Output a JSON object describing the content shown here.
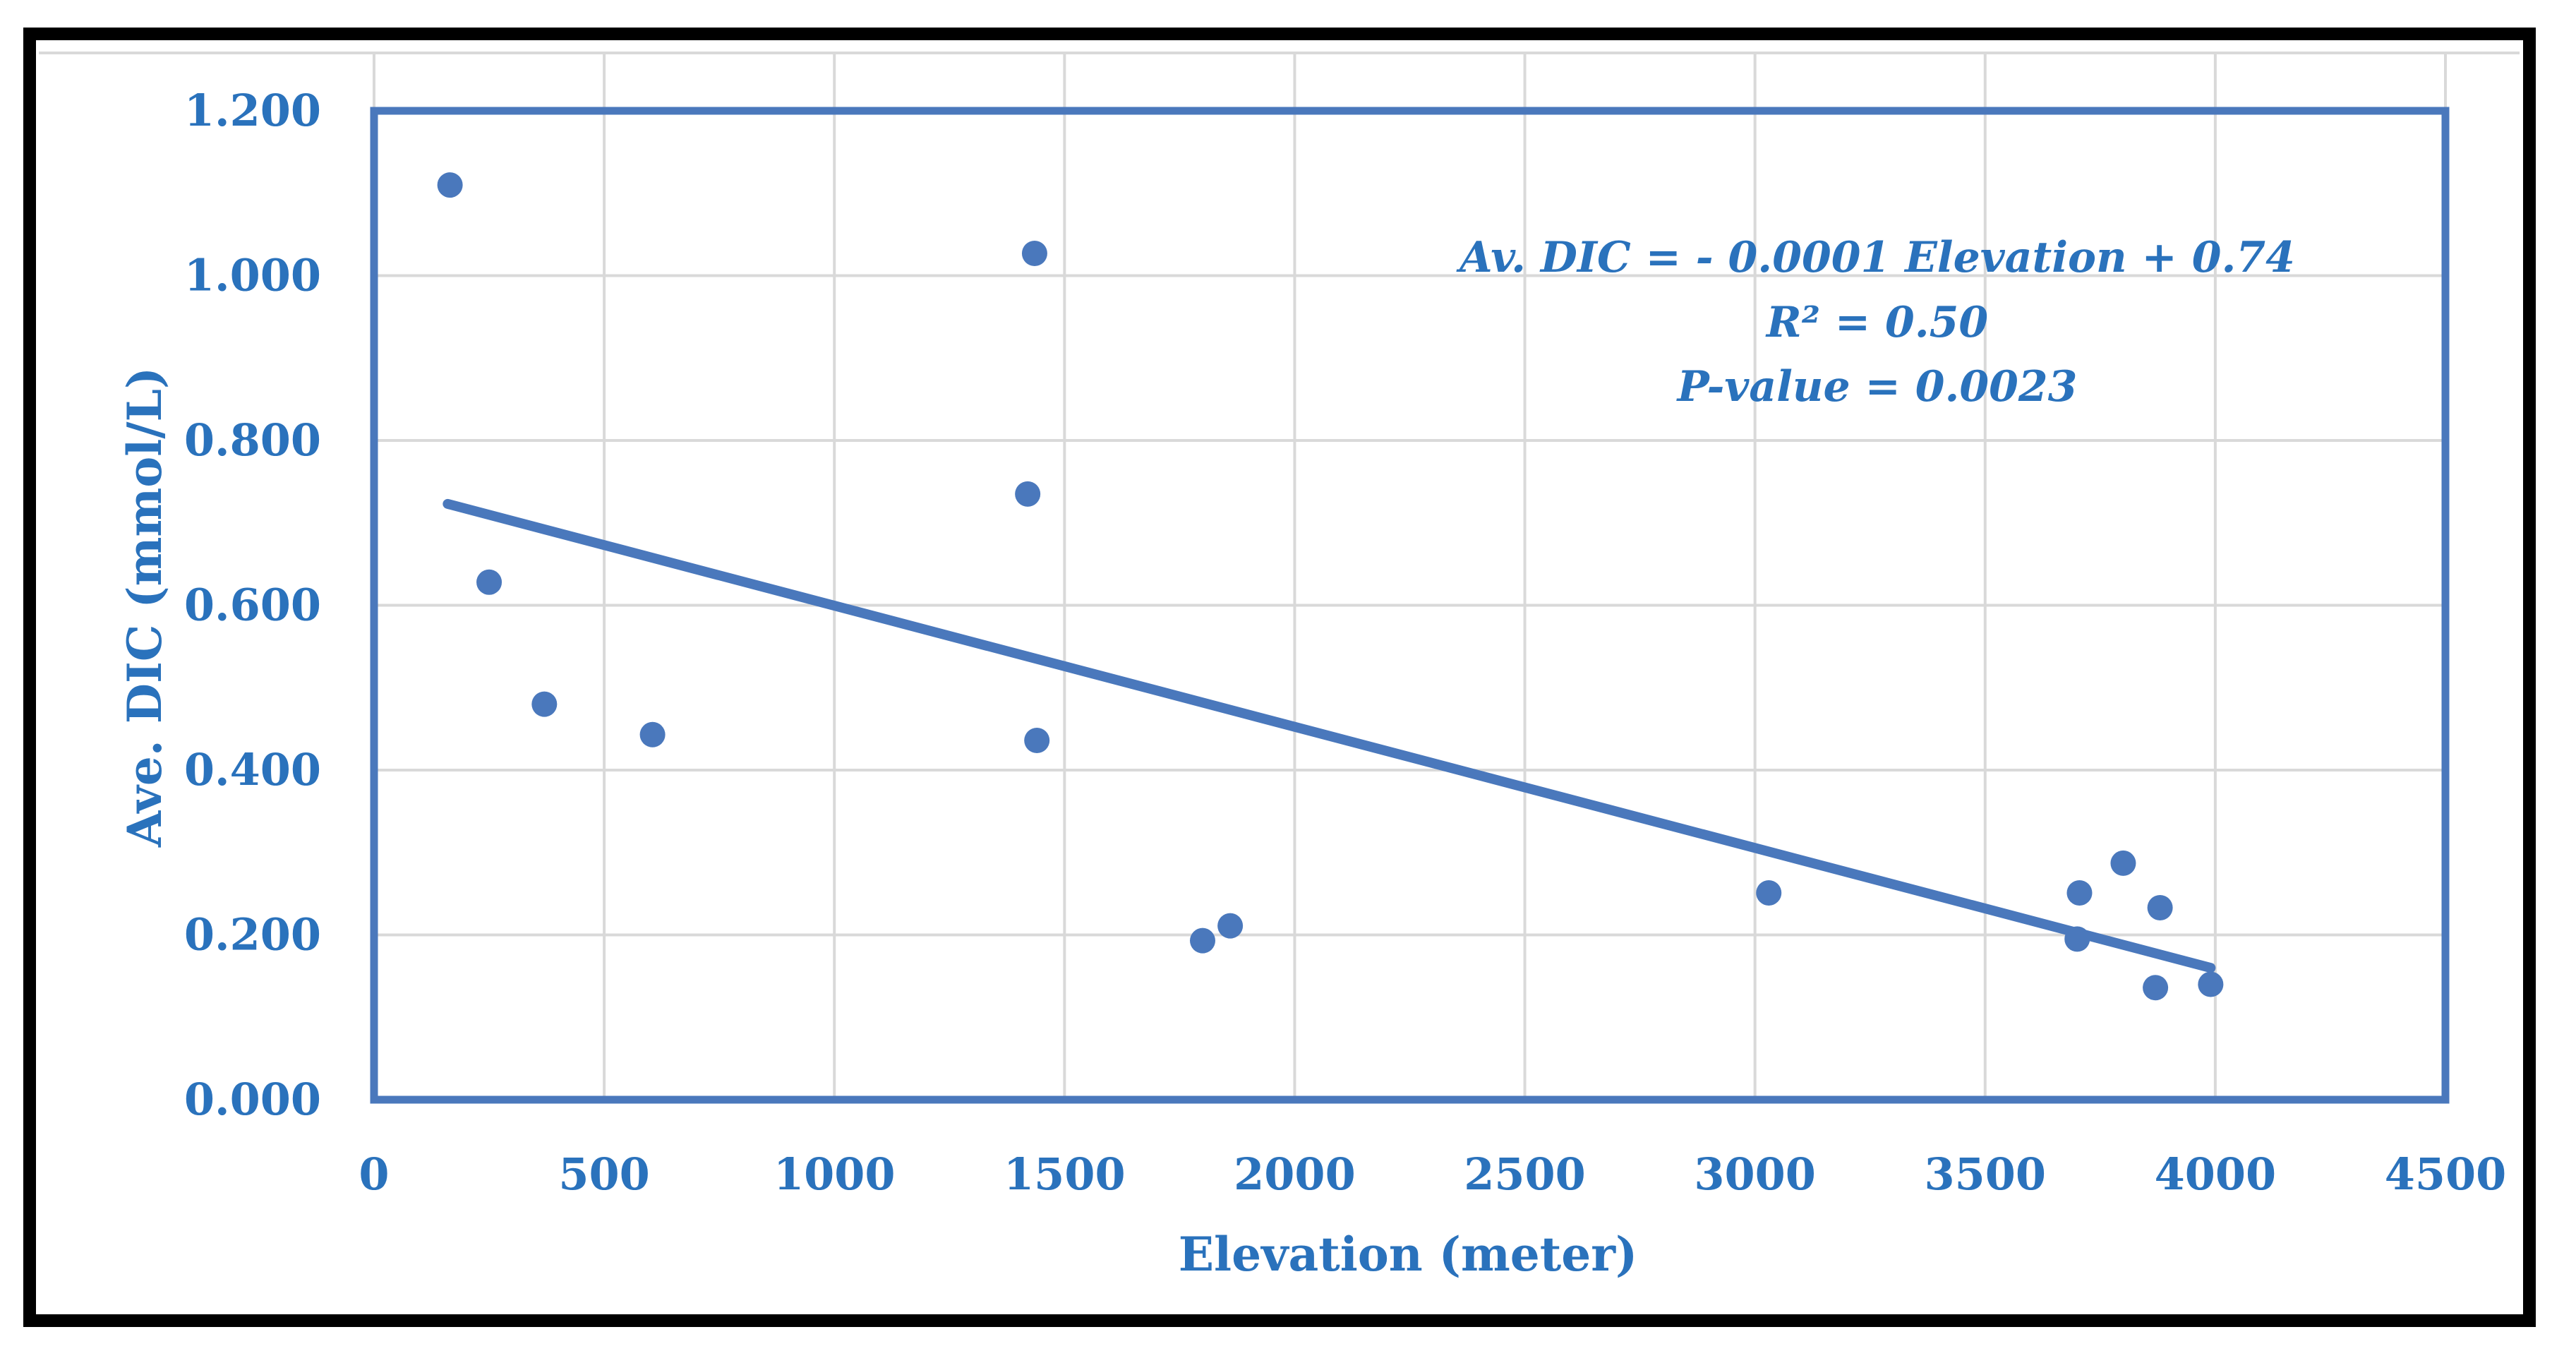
{
  "chart_data": {
    "type": "scatter",
    "title": "",
    "xlabel": "Elevation (meter)",
    "ylabel": "Ave. DIC (mmol/L)",
    "xlim": [
      0,
      4500
    ],
    "ylim": [
      0,
      1.2
    ],
    "x_ticks": [
      0,
      500,
      1000,
      1500,
      2000,
      2500,
      3000,
      3500,
      4000,
      4500
    ],
    "y_ticks": [
      0,
      0.2,
      0.4,
      0.6,
      0.8,
      1.0,
      1.2
    ],
    "x_tick_labels": [
      "0",
      "500",
      "1000",
      "1500",
      "2000",
      "2500",
      "3000",
      "3500",
      "4000",
      "4500"
    ],
    "y_tick_labels": [
      "0.000",
      "0.200",
      "0.400",
      "0.600",
      "0.800",
      "1.000",
      "1.200"
    ],
    "grid": true,
    "series": [
      {
        "name": "Ave. DIC",
        "color": "#4a78bc",
        "points": [
          [
            165,
            1.11
          ],
          [
            250,
            0.628
          ],
          [
            370,
            0.48
          ],
          [
            605,
            0.443
          ],
          [
            1420,
            0.735
          ],
          [
            1435,
            1.027
          ],
          [
            1440,
            0.436
          ],
          [
            1800,
            0.193
          ],
          [
            1860,
            0.211
          ],
          [
            3030,
            0.251
          ],
          [
            3700,
            0.195
          ],
          [
            3705,
            0.251
          ],
          [
            3800,
            0.287
          ],
          [
            3870,
            0.136
          ],
          [
            3880,
            0.233
          ],
          [
            3990,
            0.14
          ]
        ]
      }
    ],
    "trendline": {
      "x": [
        160,
        3990
      ],
      "y": [
        0.723,
        0.16
      ],
      "color": "#4a78bc"
    },
    "annotation_lines": [
      "Av. DIC = - 0.0001 Elevation + 0.74",
      "R² = 0.50",
      "P-value = 0.0023"
    ],
    "colors": {
      "text": "#2a72bc",
      "plot_border": "#4a78bc",
      "grid": "#d9d9d9",
      "outer_border": "#000000"
    }
  }
}
